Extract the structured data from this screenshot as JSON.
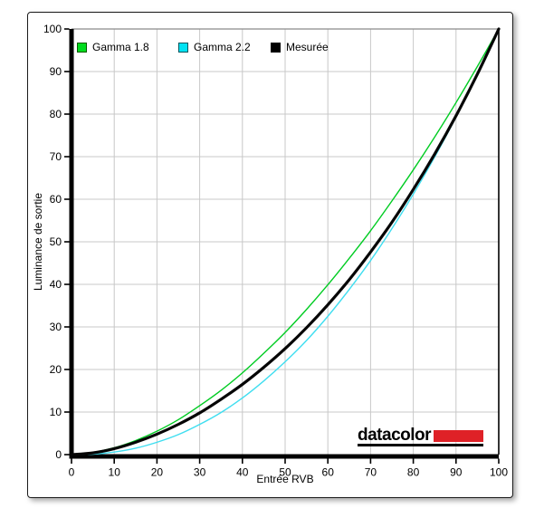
{
  "page": {
    "background": "#ffffff"
  },
  "panel": {
    "border_color": "#1a1a1a"
  },
  "legend": {
    "items": [
      {
        "label": "Gamma 1.8",
        "fill": "#00dc1e",
        "border": "#005a00"
      },
      {
        "label": "Gamma 2.2",
        "fill": "#00e2f2",
        "border": "#00565e"
      },
      {
        "label": "Mesurée",
        "fill": "#000000",
        "border": "#000000"
      }
    ]
  },
  "logo": {
    "text": "datacolor",
    "bar_color": "#df2127"
  },
  "chart_data": {
    "type": "line",
    "title": "",
    "xlabel": "Entrée RVB",
    "ylabel": "Luminance de sortie",
    "xlim": [
      0,
      100
    ],
    "ylim": [
      0,
      100
    ],
    "x_ticks": [
      0,
      10,
      20,
      30,
      40,
      50,
      60,
      70,
      80,
      90,
      100
    ],
    "y_ticks": [
      0,
      10,
      20,
      30,
      40,
      50,
      60,
      70,
      80,
      90,
      100
    ],
    "grid": true,
    "grid_color": "#c8c8c8",
    "legend_position": "top-left-inside",
    "x": [
      0,
      5,
      10,
      15,
      20,
      25,
      30,
      35,
      40,
      45,
      50,
      55,
      60,
      65,
      70,
      75,
      80,
      85,
      90,
      95,
      100
    ],
    "series": [
      {
        "name": "Gamma 2.2",
        "gamma": 2.2,
        "color": "#3fdef0",
        "width": 1.4,
        "values": [
          0,
          0.1,
          0.6,
          1.5,
          2.9,
          4.7,
          7.1,
          9.9,
          13.3,
          17.3,
          21.8,
          26.8,
          32.5,
          38.8,
          45.6,
          53.1,
          61.2,
          69.9,
          79.3,
          89.3,
          100
        ]
      },
      {
        "name": "Gamma 1.8",
        "gamma": 1.8,
        "color": "#00cc22",
        "width": 1.4,
        "values": [
          0,
          0.5,
          1.6,
          3.3,
          5.5,
          8.2,
          11.5,
          15.1,
          19.2,
          23.8,
          28.7,
          34.1,
          39.9,
          46.1,
          52.6,
          59.6,
          66.9,
          74.6,
          82.7,
          91.2,
          100
        ]
      },
      {
        "name": "Mesurée",
        "color": "#050505",
        "width": 3.2,
        "values": [
          0,
          0.4,
          1.4,
          2.9,
          4.8,
          7.1,
          9.8,
          13.0,
          16.5,
          20.5,
          24.9,
          29.8,
          35.2,
          41.1,
          47.6,
          54.6,
          62.3,
          70.6,
          79.6,
          89.4,
          100
        ]
      }
    ]
  }
}
